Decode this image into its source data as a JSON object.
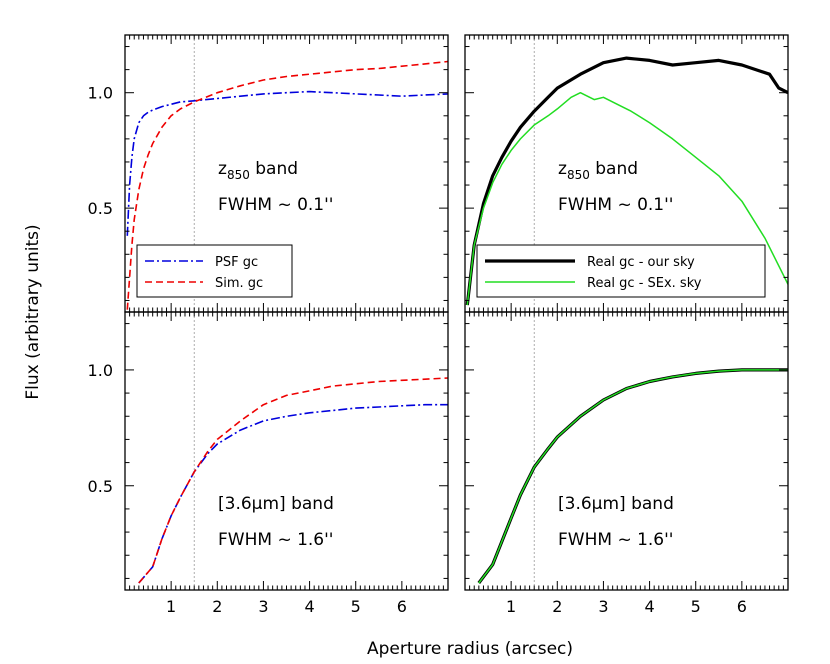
{
  "figure": {
    "xlabel": "Aperture radius (arcsec)",
    "ylabel": "Flux (arbitrary units)"
  },
  "chart_data": [
    {
      "type": "line",
      "panel": "top-left",
      "annotation": {
        "band_base": "z",
        "band_sub": "850",
        "band_word": "band",
        "fwhm": "FWHM ~ 0.1''"
      },
      "xlim": [
        0,
        7
      ],
      "ylim": [
        0.05,
        1.25
      ],
      "xticks": [
        "1",
        "2",
        "3",
        "4",
        "5",
        "6"
      ],
      "yticks": [
        "0.5",
        "1.0"
      ],
      "vline_x": 1.5,
      "legend": {
        "position": "bottom-left"
      },
      "series": [
        {
          "name": "PSF gc",
          "color": "#0000dd",
          "style": "dashdot",
          "x": [
            0.05,
            0.1,
            0.15,
            0.2,
            0.3,
            0.4,
            0.5,
            0.6,
            0.8,
            1.0,
            1.2,
            1.5,
            2.0,
            2.5,
            3.0,
            3.5,
            4.0,
            4.5,
            5.0,
            5.5,
            6.0,
            6.5,
            7.0
          ],
          "y": [
            0.38,
            0.6,
            0.72,
            0.8,
            0.87,
            0.9,
            0.915,
            0.925,
            0.94,
            0.95,
            0.96,
            0.965,
            0.975,
            0.985,
            0.995,
            1.0,
            1.005,
            1.0,
            0.995,
            0.99,
            0.985,
            0.99,
            0.995
          ]
        },
        {
          "name": "Sim. gc",
          "color": "#ee0000",
          "style": "dashed",
          "x": [
            0.05,
            0.1,
            0.15,
            0.2,
            0.3,
            0.4,
            0.5,
            0.6,
            0.8,
            1.0,
            1.2,
            1.5,
            2.0,
            2.5,
            3.0,
            3.5,
            4.0,
            4.5,
            5.0,
            5.5,
            6.0,
            6.5,
            7.0
          ],
          "y": [
            0.06,
            0.2,
            0.34,
            0.45,
            0.58,
            0.67,
            0.73,
            0.78,
            0.85,
            0.9,
            0.93,
            0.96,
            1.0,
            1.03,
            1.055,
            1.07,
            1.08,
            1.09,
            1.1,
            1.105,
            1.115,
            1.125,
            1.135
          ]
        }
      ]
    },
    {
      "type": "line",
      "panel": "top-right",
      "annotation": {
        "band_base": "z",
        "band_sub": "850",
        "band_word": "band",
        "fwhm": "FWHM ~ 0.1''"
      },
      "xlim": [
        0,
        7
      ],
      "ylim": [
        0.05,
        1.25
      ],
      "xticks": [
        "1",
        "2",
        "3",
        "4",
        "5",
        "6"
      ],
      "yticks": [
        "0.5",
        "1.0"
      ],
      "vline_x": 1.5,
      "legend": {
        "position": "bottom-right"
      },
      "series": [
        {
          "name": "Real gc - our sky",
          "color": "#000000",
          "style": "solid-thick",
          "x": [
            0.05,
            0.2,
            0.4,
            0.6,
            0.8,
            1.0,
            1.2,
            1.5,
            1.8,
            2.0,
            2.5,
            3.0,
            3.5,
            4.0,
            4.5,
            5.0,
            5.5,
            6.0,
            6.3,
            6.6,
            6.8,
            7.0
          ],
          "y": [
            0.08,
            0.34,
            0.52,
            0.64,
            0.72,
            0.79,
            0.85,
            0.92,
            0.98,
            1.02,
            1.08,
            1.13,
            1.15,
            1.14,
            1.12,
            1.13,
            1.14,
            1.12,
            1.1,
            1.08,
            1.02,
            1.0
          ]
        },
        {
          "name": "Real gc - SEx. sky",
          "color": "#22dd22",
          "style": "solid",
          "x": [
            0.05,
            0.2,
            0.4,
            0.6,
            0.8,
            1.0,
            1.2,
            1.5,
            1.8,
            2.0,
            2.3,
            2.5,
            2.8,
            3.0,
            3.3,
            3.6,
            4.0,
            4.5,
            5.0,
            5.5,
            6.0,
            6.5,
            7.0
          ],
          "y": [
            0.08,
            0.34,
            0.5,
            0.61,
            0.69,
            0.75,
            0.8,
            0.86,
            0.9,
            0.93,
            0.98,
            1.0,
            0.97,
            0.98,
            0.95,
            0.92,
            0.87,
            0.8,
            0.72,
            0.64,
            0.53,
            0.37,
            0.17
          ]
        }
      ]
    },
    {
      "type": "line",
      "panel": "bottom-left",
      "annotation": {
        "band_label": "[3.6µm]",
        "band_word": "band",
        "fwhm": "FWHM ~ 1.6''"
      },
      "xlim": [
        0,
        7
      ],
      "ylim": [
        0.05,
        1.25
      ],
      "xticks": [
        "1",
        "2",
        "3",
        "4",
        "5",
        "6"
      ],
      "yticks": [
        "0.5",
        "1.0"
      ],
      "vline_x": 1.5,
      "series": [
        {
          "name": "PSF gc",
          "color": "#0000dd",
          "style": "dashdot",
          "x": [
            0.3,
            0.6,
            0.8,
            1.0,
            1.2,
            1.5,
            1.8,
            2.0,
            2.5,
            3.0,
            3.5,
            4.0,
            4.5,
            5.0,
            5.5,
            6.0,
            6.5,
            7.0
          ],
          "y": [
            0.08,
            0.15,
            0.27,
            0.37,
            0.45,
            0.56,
            0.64,
            0.68,
            0.74,
            0.78,
            0.8,
            0.815,
            0.825,
            0.835,
            0.84,
            0.845,
            0.85,
            0.85
          ]
        },
        {
          "name": "Sim. gc",
          "color": "#ee0000",
          "style": "dashed",
          "x": [
            0.3,
            0.6,
            0.8,
            1.0,
            1.2,
            1.5,
            1.8,
            2.0,
            2.5,
            3.0,
            3.5,
            4.0,
            4.5,
            5.0,
            5.5,
            6.0,
            6.5,
            7.0
          ],
          "y": [
            0.08,
            0.15,
            0.27,
            0.37,
            0.45,
            0.56,
            0.65,
            0.7,
            0.78,
            0.85,
            0.89,
            0.91,
            0.93,
            0.94,
            0.95,
            0.955,
            0.96,
            0.965
          ]
        }
      ]
    },
    {
      "type": "line",
      "panel": "bottom-right",
      "annotation": {
        "band_label": "[3.6µm]",
        "band_word": "band",
        "fwhm": "FWHM ~ 1.6''"
      },
      "xlim": [
        0,
        7
      ],
      "ylim": [
        0.05,
        1.25
      ],
      "xticks": [
        "1",
        "2",
        "3",
        "4",
        "5",
        "6"
      ],
      "yticks": [
        "0.5",
        "1.0"
      ],
      "vline_x": 1.5,
      "series": [
        {
          "name": "Real gc - our sky",
          "color": "#000000",
          "style": "solid-thick",
          "x": [
            0.3,
            0.6,
            0.8,
            1.0,
            1.2,
            1.5,
            1.8,
            2.0,
            2.5,
            3.0,
            3.5,
            4.0,
            4.5,
            5.0,
            5.5,
            6.0,
            6.5,
            7.0
          ],
          "y": [
            0.08,
            0.16,
            0.26,
            0.36,
            0.46,
            0.58,
            0.66,
            0.71,
            0.8,
            0.87,
            0.92,
            0.95,
            0.97,
            0.985,
            0.995,
            1.0,
            1.0,
            1.0
          ]
        },
        {
          "name": "Real gc - SEx. sky",
          "color": "#22dd22",
          "style": "solid",
          "x": [
            0.3,
            0.6,
            0.8,
            1.0,
            1.2,
            1.5,
            1.8,
            2.0,
            2.5,
            3.0,
            3.5,
            4.0,
            4.5,
            5.0,
            5.5,
            6.0,
            6.5,
            7.0
          ],
          "y": [
            0.08,
            0.16,
            0.26,
            0.36,
            0.46,
            0.58,
            0.66,
            0.71,
            0.8,
            0.87,
            0.92,
            0.95,
            0.97,
            0.985,
            0.995,
            1.0,
            1.0,
            1.0
          ]
        }
      ]
    }
  ]
}
